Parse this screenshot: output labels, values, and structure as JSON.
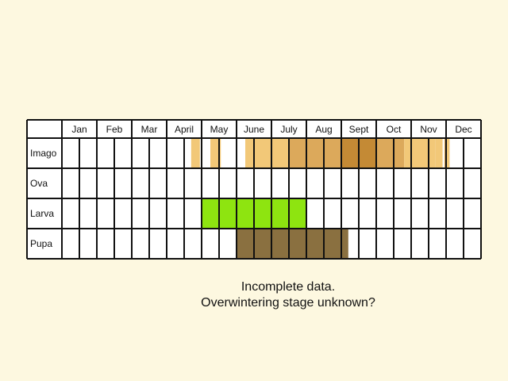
{
  "chart_data": {
    "type": "table",
    "columns": [
      "Jan",
      "Feb",
      "Mar",
      "April",
      "May",
      "June",
      "July",
      "Aug",
      "Sept",
      "Oct",
      "Nov",
      "Dec"
    ],
    "rows": [
      "Imago",
      "Ova",
      "Larva",
      "Pupa"
    ],
    "cells_per_month": 2,
    "occurrence": {
      "Imago": [
        {
          "month": 4,
          "from": 0.7,
          "to": 0.95,
          "color": "#f2c878"
        },
        {
          "month": 5,
          "from": 0.25,
          "to": 0.55,
          "color": "#f2c878"
        },
        {
          "month": 6,
          "from": 0.25,
          "to": 1.0,
          "color": "#f2c878"
        },
        {
          "month": 7,
          "from": 0.0,
          "to": 0.5,
          "color": "#f2c878"
        },
        {
          "month": 7,
          "from": 0.5,
          "to": 1.0,
          "color": "#dca95b"
        },
        {
          "month": 8,
          "from": 0.0,
          "to": 1.0,
          "color": "#dca95b"
        },
        {
          "month": 9,
          "from": 0.0,
          "to": 1.0,
          "color": "#c48a35"
        },
        {
          "month": 10,
          "from": 0.0,
          "to": 0.8,
          "color": "#dca95b"
        },
        {
          "month": 10,
          "from": 0.8,
          "to": 1.0,
          "color": "#f2c878"
        },
        {
          "month": 11,
          "from": 0.0,
          "to": 0.7,
          "color": "#f2c878"
        },
        {
          "month": 11,
          "from": 0.7,
          "to": 0.9,
          "color": "#f2c878"
        },
        {
          "month": 11,
          "from": 0.95,
          "to": 1.0,
          "color": "#dca95b"
        },
        {
          "month": 12,
          "from": 0.0,
          "to": 0.1,
          "color": "#f2c878"
        }
      ],
      "Ova": [],
      "Larva": [
        {
          "month": 5,
          "from": 0.0,
          "to": 1.0,
          "color": "#8ee410"
        },
        {
          "month": 6,
          "from": 0.0,
          "to": 1.0,
          "color": "#8ee410"
        },
        {
          "month": 7,
          "from": 0.0,
          "to": 1.0,
          "color": "#8ee410"
        }
      ],
      "Pupa": [
        {
          "month": 6,
          "from": 0.0,
          "to": 1.0,
          "color": "#8a7040"
        },
        {
          "month": 7,
          "from": 0.0,
          "to": 1.0,
          "color": "#8a7040"
        },
        {
          "month": 8,
          "from": 0.0,
          "to": 1.0,
          "color": "#8a7040"
        },
        {
          "month": 9,
          "from": 0.0,
          "to": 0.2,
          "color": "#8a7040"
        }
      ]
    }
  },
  "notes": {
    "line1": "Incomplete data.",
    "line2": "Overwintering stage unknown?"
  }
}
